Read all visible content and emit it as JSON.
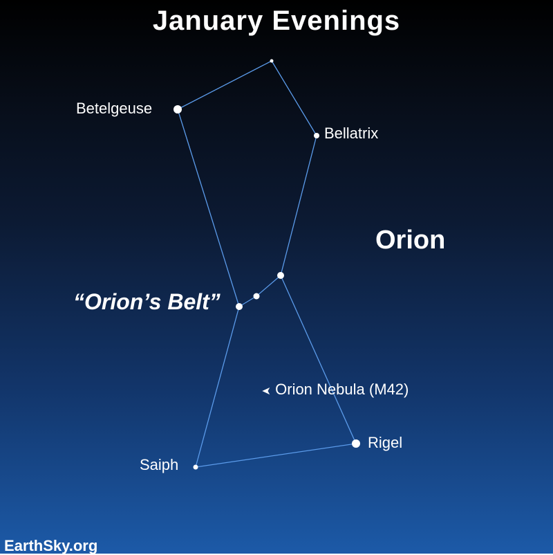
{
  "title": "January Evenings",
  "constellation": "Orion",
  "asterism": "“Orion’s Belt”",
  "stars": {
    "betelgeuse": "Betelgeuse",
    "bellatrix": "Bellatrix",
    "rigel": "Rigel",
    "saiph": "Saiph"
  },
  "nebula": {
    "marker": "➤",
    "label": "Orion Nebula (M42)"
  },
  "credit": "EarthSky.org",
  "colors": {
    "line": "#5b9bea",
    "star": "#ffffff",
    "sky_top": "#000000",
    "sky_bottom": "#1c5aa8"
  }
}
